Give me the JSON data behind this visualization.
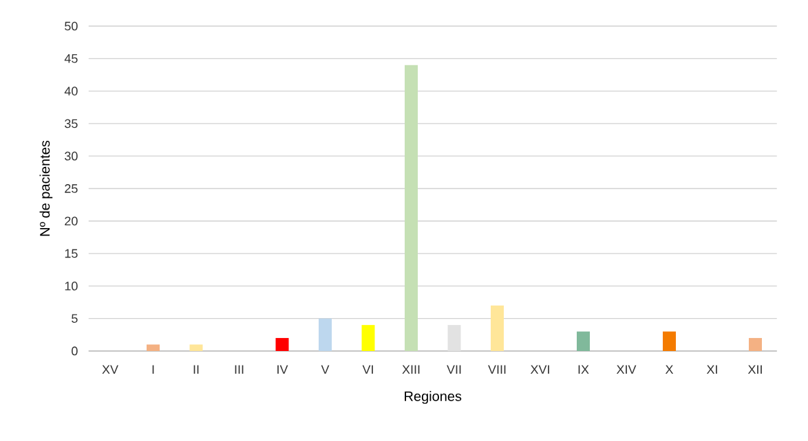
{
  "chart_data": {
    "type": "bar",
    "xlabel": "Regiones",
    "ylabel": "Nº de pacientes",
    "categories": [
      "XV",
      "I",
      "II",
      "III",
      "IV",
      "V",
      "VI",
      "XIII",
      "VII",
      "VIII",
      "XVI",
      "IX",
      "XIV",
      "X",
      "XI",
      "XII"
    ],
    "values": [
      0,
      1,
      1,
      0,
      2,
      5,
      4,
      44,
      4,
      7,
      0,
      3,
      0,
      3,
      0,
      2
    ],
    "colors": [
      "#a6a6a6",
      "#f4b183",
      "#ffe699",
      "#a6a6a6",
      "#ff0000",
      "#bdd7ee",
      "#ffff00",
      "#c5e0b4",
      "#e2e2e2",
      "#ffe699",
      "#a6a6a6",
      "#80b99b",
      "#a6a6a6",
      "#f47b00",
      "#a6a6a6",
      "#f4b183"
    ],
    "ylim": [
      0,
      50
    ],
    "yticks": [
      0,
      5,
      10,
      15,
      20,
      25,
      30,
      35,
      40,
      45,
      50
    ],
    "grid": "y"
  }
}
